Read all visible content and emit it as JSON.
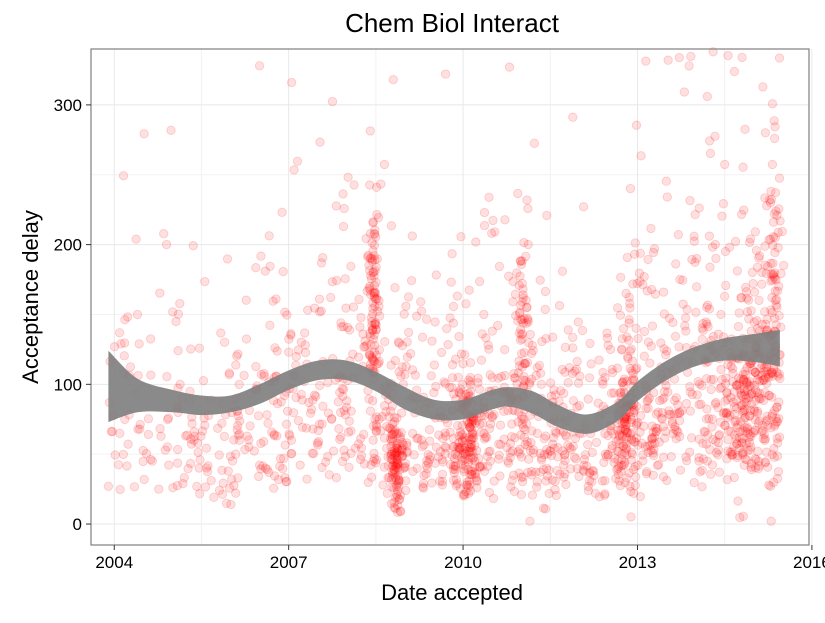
{
  "chart_data": {
    "type": "scatter",
    "title": "Chem Biol Interact",
    "xlabel": "Date accepted",
    "ylabel": "Acceptance delay",
    "xlim": [
      2003.6,
      2015.95
    ],
    "ylim": [
      -15,
      340
    ],
    "x_ticks": [
      2004,
      2007,
      2010,
      2013,
      2016
    ],
    "x_tick_labels": [
      "2004",
      "2007",
      "2010",
      "2013",
      "2016"
    ],
    "y_ticks": [
      0,
      100,
      200,
      300
    ],
    "y_tick_labels": [
      "0",
      "100",
      "200",
      "300"
    ],
    "grid": true,
    "legend": "none",
    "point_color": "#ff0000",
    "point_opacity": 0.12,
    "ribbon_color": "#808080",
    "n_points": 2100,
    "points_sample": [
      {
        "x": 2006.5,
        "y": 328
      },
      {
        "x": 2007.05,
        "y": 316
      },
      {
        "x": 2008.8,
        "y": 318
      },
      {
        "x": 2009.7,
        "y": 322
      },
      {
        "x": 2014.3,
        "y": 338
      },
      {
        "x": 2014.2,
        "y": 306
      },
      {
        "x": 2003.9,
        "y": 27
      },
      {
        "x": 2011.15,
        "y": 2
      },
      {
        "x": 2015.3,
        "y": 2
      },
      {
        "x": 2004.4,
        "y": 150
      },
      {
        "x": 2004.9,
        "y": 200
      },
      {
        "x": 2008.4,
        "y": 190
      },
      {
        "x": 2010.0,
        "y": 50
      },
      {
        "x": 2012.8,
        "y": 70
      },
      {
        "x": 2015.2,
        "y": 280
      }
    ],
    "smooth": {
      "x": [
        2003.9,
        2004.4,
        2005.0,
        2005.5,
        2006.0,
        2006.5,
        2007.0,
        2007.5,
        2008.0,
        2008.5,
        2009.0,
        2009.5,
        2010.0,
        2010.5,
        2010.8,
        2011.2,
        2011.6,
        2012.0,
        2012.3,
        2012.7,
        2013.0,
        2013.5,
        2014.0,
        2014.5,
        2015.0,
        2015.45
      ],
      "fit": [
        98,
        92,
        88,
        85,
        86,
        93,
        103,
        110,
        110,
        102,
        90,
        82,
        82,
        89,
        91,
        87,
        78,
        72,
        73,
        82,
        95,
        110,
        120,
        125,
        126,
        126
      ],
      "lower": [
        73,
        80,
        80,
        78,
        80,
        86,
        96,
        103,
        103,
        95,
        82,
        75,
        75,
        82,
        84,
        79,
        70,
        65,
        66,
        75,
        88,
        103,
        113,
        117,
        116,
        113
      ],
      "upper": [
        124,
        104,
        96,
        92,
        92,
        100,
        110,
        117,
        117,
        109,
        98,
        89,
        89,
        96,
        98,
        95,
        86,
        79,
        80,
        89,
        102,
        117,
        127,
        133,
        136,
        139
      ]
    }
  }
}
